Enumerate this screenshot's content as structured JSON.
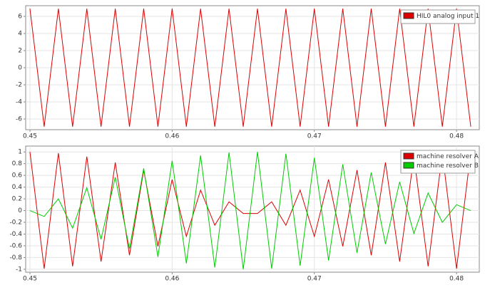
{
  "chart_data": [
    {
      "type": "line",
      "x": [
        0.45,
        0.451,
        0.452,
        0.453,
        0.454,
        0.455,
        0.456,
        0.457,
        0.458,
        0.459,
        0.46,
        0.461,
        0.462,
        0.463,
        0.464,
        0.465,
        0.466,
        0.467,
        0.468,
        0.469,
        0.47,
        0.471,
        0.472,
        0.473,
        0.474,
        0.475,
        0.476,
        0.477,
        0.478,
        0.479,
        0.48,
        0.481
      ],
      "series": [
        {
          "name": "HIL0 analog input 1",
          "color": "#dd0000",
          "values": [
            6.9,
            -6.9,
            6.9,
            -6.9,
            6.9,
            -6.9,
            6.9,
            -6.9,
            6.9,
            -6.9,
            6.9,
            -6.9,
            6.9,
            -6.9,
            6.9,
            -6.9,
            6.9,
            -6.9,
            6.9,
            -6.9,
            6.9,
            -6.9,
            6.9,
            -6.9,
            6.9,
            -6.9,
            6.9,
            -6.9,
            6.9,
            -6.9,
            6.9,
            -6.9
          ]
        }
      ],
      "xlim": [
        0.4497,
        0.4816
      ],
      "xticks": [
        0.45,
        0.46,
        0.47,
        0.48
      ],
      "ylim": [
        -7.25,
        7.25
      ],
      "yticks": [
        -6,
        -4,
        -2,
        0,
        2,
        4,
        6
      ],
      "grid": true,
      "legend": "top-right"
    },
    {
      "type": "line",
      "x": [
        0.45,
        0.451,
        0.452,
        0.453,
        0.454,
        0.455,
        0.456,
        0.457,
        0.458,
        0.459,
        0.46,
        0.461,
        0.462,
        0.463,
        0.464,
        0.465,
        0.466,
        0.467,
        0.468,
        0.469,
        0.47,
        0.471,
        0.472,
        0.473,
        0.474,
        0.475,
        0.476,
        0.477,
        0.478,
        0.479,
        0.48,
        0.481
      ],
      "series": [
        {
          "name": "machine resolver A",
          "color": "#dd0000",
          "values": [
            1,
            -0.99,
            0.98,
            -0.95,
            0.92,
            -0.87,
            0.82,
            -0.76,
            0.69,
            -0.61,
            0.53,
            -0.44,
            0.35,
            -0.25,
            0.15,
            -0.05,
            -0.05,
            0.15,
            -0.25,
            0.35,
            -0.44,
            0.53,
            -0.61,
            0.69,
            -0.76,
            0.82,
            -0.87,
            0.92,
            -0.95,
            0.98,
            -0.99,
            1
          ]
        },
        {
          "name": "machine resolver B",
          "color": "#00cc00",
          "values": [
            0,
            -0.1,
            0.2,
            -0.3,
            0.39,
            -0.49,
            0.57,
            -0.65,
            0.72,
            -0.79,
            0.85,
            -0.9,
            0.94,
            -0.97,
            0.99,
            -1,
            1,
            -0.99,
            0.97,
            -0.94,
            0.9,
            -0.85,
            0.79,
            -0.72,
            0.65,
            -0.57,
            0.49,
            -0.39,
            0.3,
            -0.2,
            0.1,
            0
          ]
        }
      ],
      "xlim": [
        0.4497,
        0.4816
      ],
      "xticks": [
        0.45,
        0.46,
        0.47,
        0.48
      ],
      "ylim": [
        -1.05,
        1.1
      ],
      "yticks": [
        -1,
        -0.8,
        -0.6,
        -0.4,
        -0.2,
        0,
        0.2,
        0.4,
        0.6,
        0.8,
        1
      ],
      "grid": true,
      "legend": "top-right"
    }
  ]
}
